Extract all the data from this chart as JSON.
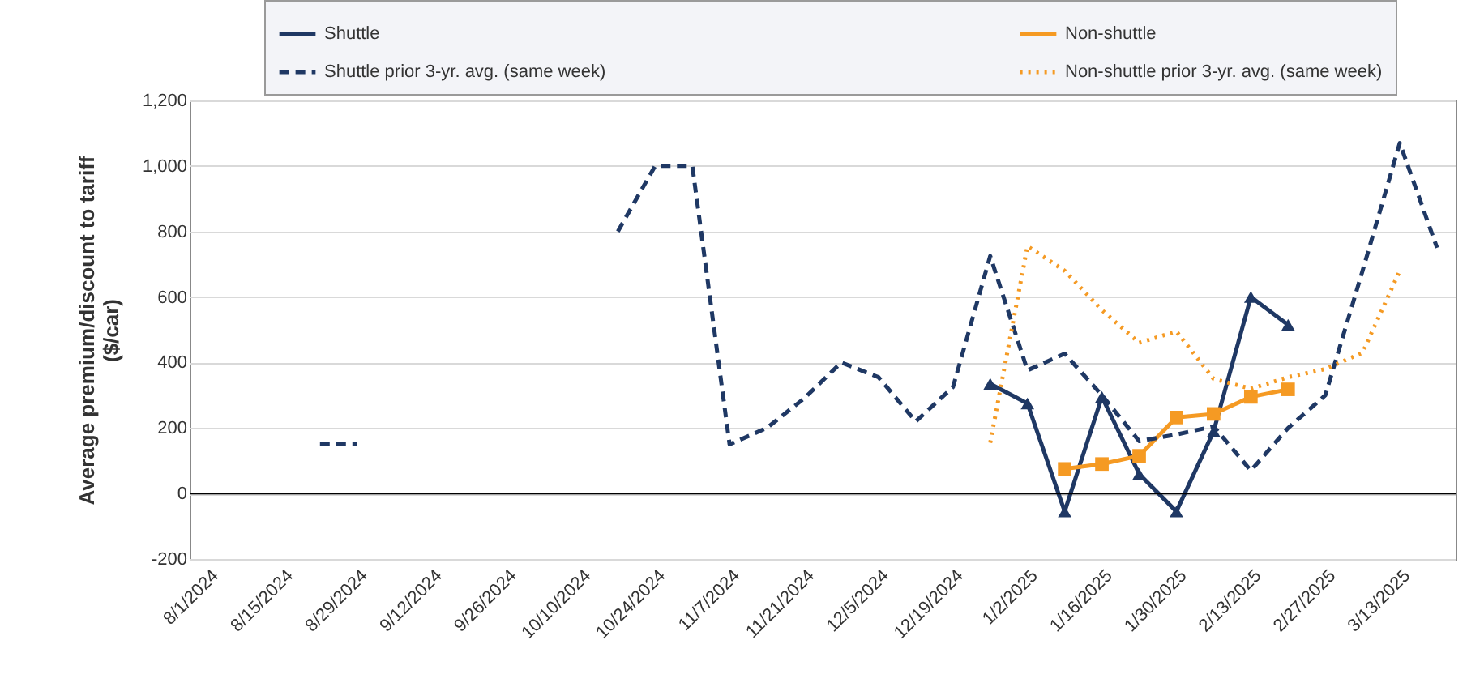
{
  "chart_data": {
    "type": "line",
    "ylabel": "Average premium/discount to tariff\n($/car)",
    "categories": [
      "8/1/2024",
      null,
      "8/15/2024",
      null,
      "8/29/2024",
      null,
      "9/12/2024",
      null,
      "9/26/2024",
      null,
      "10/10/2024",
      null,
      "10/24/2024",
      null,
      "11/7/2024",
      null,
      "11/21/2024",
      null,
      "12/5/2024",
      null,
      "12/19/2024",
      null,
      "1/2/2025",
      null,
      "1/16/2025",
      null,
      "1/30/2025",
      null,
      "2/13/2025",
      null,
      "2/27/2025",
      null,
      "3/13/2025",
      null
    ],
    "series": [
      {
        "name": "Shuttle",
        "color": "#1f3864",
        "marker": "triangle",
        "line_style": "solid",
        "values": [
          null,
          null,
          null,
          null,
          null,
          null,
          null,
          null,
          null,
          null,
          null,
          null,
          null,
          null,
          null,
          null,
          null,
          null,
          null,
          null,
          null,
          335,
          275,
          -55,
          295,
          60,
          -55,
          190,
          600,
          515,
          null,
          null,
          null,
          null
        ]
      },
      {
        "name": "Non-shuttle",
        "color": "#f59a23",
        "marker": "square",
        "line_style": "solid",
        "values": [
          null,
          null,
          null,
          null,
          null,
          null,
          null,
          null,
          null,
          null,
          null,
          null,
          null,
          null,
          null,
          null,
          null,
          null,
          null,
          null,
          null,
          null,
          null,
          75,
          90,
          115,
          232,
          243,
          295,
          318,
          null,
          null,
          null,
          null
        ]
      },
      {
        "name": "Shuttle prior 3-yr. avg. (same week)",
        "color": "#1f3864",
        "marker": "none",
        "line_style": "dashed",
        "values": [
          null,
          null,
          null,
          150,
          150,
          null,
          null,
          null,
          null,
          null,
          null,
          800,
          1000,
          1000,
          150,
          200,
          290,
          400,
          355,
          220,
          325,
          725,
          376,
          427,
          300,
          160,
          180,
          205,
          70,
          200,
          300,
          680,
          1070,
          750
        ]
      },
      {
        "name": "Non-shuttle prior 3-yr. avg. (same week)",
        "color": "#f59a23",
        "marker": "none",
        "line_style": "dotted",
        "values": [
          null,
          null,
          null,
          null,
          null,
          null,
          null,
          null,
          null,
          null,
          null,
          null,
          null,
          null,
          null,
          null,
          null,
          null,
          null,
          null,
          null,
          155,
          755,
          680,
          560,
          460,
          495,
          350,
          320,
          355,
          380,
          430,
          680,
          null
        ]
      }
    ],
    "ylim": [
      -200,
      1200
    ],
    "yticks": [
      {
        "value": -200,
        "label": "-200"
      },
      0,
      200,
      400,
      600,
      800,
      {
        "value": 1000,
        "label": "1,000"
      },
      {
        "value": 1200,
        "label": "1,200"
      }
    ],
    "grid": "y",
    "legend": "top",
    "ref_lines": [
      {
        "axis": "y",
        "value": 0,
        "color": "#000000"
      }
    ]
  }
}
